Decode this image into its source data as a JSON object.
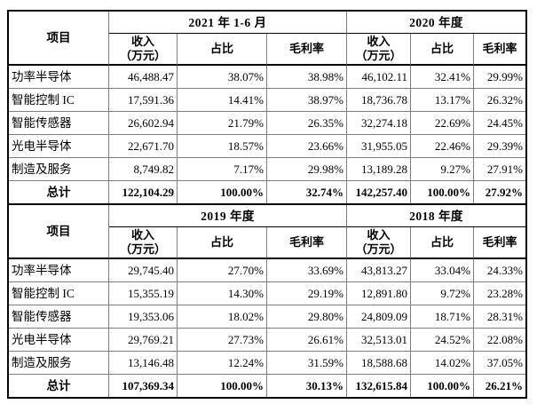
{
  "page": {
    "background": "#ffffff",
    "outer_border_color": "#000000",
    "grid_line_color": "#7d7d7d"
  },
  "labels": {
    "item": "项目",
    "revenue_line1": "收入",
    "revenue_line2": "（万元）",
    "share": "占比",
    "margin": "毛利率"
  },
  "tables": [
    {
      "periods": [
        "2021 年 1-6 月",
        "2020 年度"
      ],
      "rows": [
        {
          "label": "功率半导体",
          "values": [
            "46,488.47",
            "38.07%",
            "38.98%",
            "46,102.11",
            "32.41%",
            "29.99%"
          ]
        },
        {
          "label": "智能控制 IC",
          "values": [
            "17,591.36",
            "14.41%",
            "38.97%",
            "18,736.78",
            "13.17%",
            "26.32%"
          ]
        },
        {
          "label": "智能传感器",
          "values": [
            "26,602.94",
            "21.79%",
            "26.35%",
            "32,274.18",
            "22.69%",
            "24.45%"
          ]
        },
        {
          "label": "光电半导体",
          "values": [
            "22,671.70",
            "18.57%",
            "23.66%",
            "31,955.05",
            "22.46%",
            "29.39%"
          ]
        },
        {
          "label": "制造及服务",
          "values": [
            "8,749.82",
            "7.17%",
            "29.98%",
            "13,189.28",
            "9.27%",
            "27.91%"
          ]
        }
      ],
      "total": {
        "label": "总计",
        "values": [
          "122,104.29",
          "100.00%",
          "32.74%",
          "142,257.40",
          "100.00%",
          "27.92%"
        ]
      }
    },
    {
      "periods": [
        "2019 年度",
        "2018 年度"
      ],
      "rows": [
        {
          "label": "功率半导体",
          "values": [
            "29,745.40",
            "27.70%",
            "33.69%",
            "43,813.27",
            "33.04%",
            "24.33%"
          ]
        },
        {
          "label": "智能控制 IC",
          "values": [
            "15,355.19",
            "14.30%",
            "29.19%",
            "12,891.80",
            "9.72%",
            "23.28%"
          ]
        },
        {
          "label": "智能传感器",
          "values": [
            "19,353.06",
            "18.02%",
            "29.80%",
            "24,809.09",
            "18.71%",
            "28.31%"
          ]
        },
        {
          "label": "光电半导体",
          "values": [
            "29,769.21",
            "27.73%",
            "26.61%",
            "32,513.01",
            "24.52%",
            "22.08%"
          ]
        },
        {
          "label": "制造及服务",
          "values": [
            "13,146.48",
            "12.24%",
            "31.59%",
            "18,588.68",
            "14.02%",
            "37.05%"
          ]
        }
      ],
      "total": {
        "label": "总计",
        "values": [
          "107,369.34",
          "100.00%",
          "30.13%",
          "132,615.84",
          "100.00%",
          "26.21%"
        ]
      }
    }
  ]
}
